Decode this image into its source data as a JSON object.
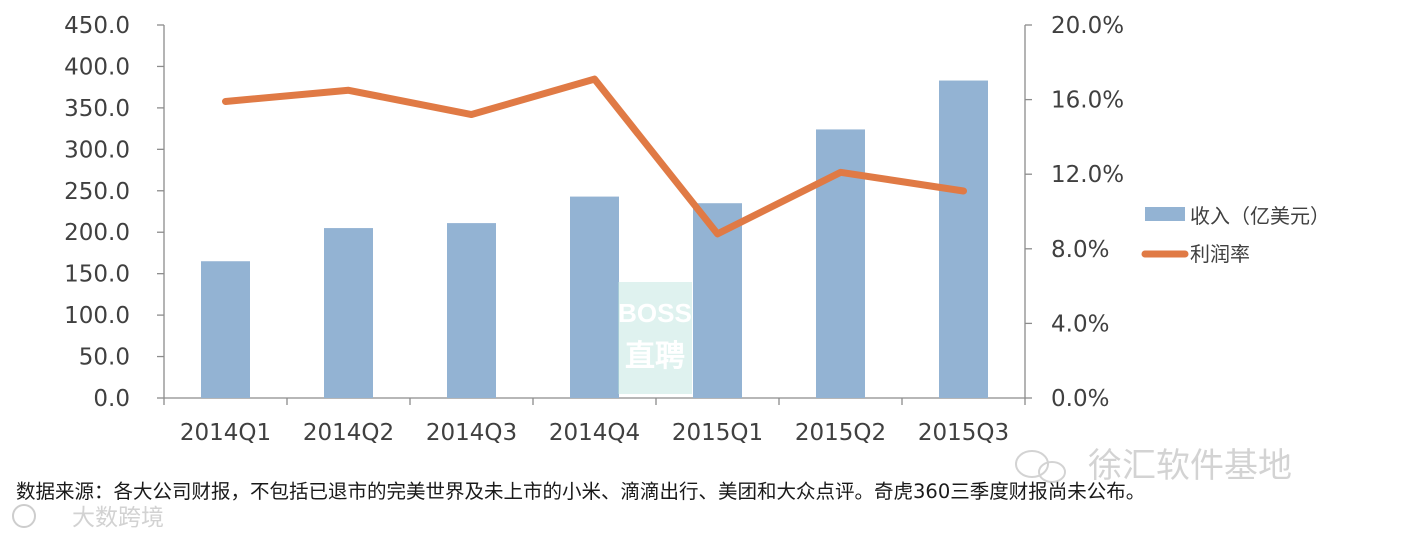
{
  "chart_data": {
    "type": "bar",
    "categories": [
      "2014Q1",
      "2014Q2",
      "2014Q3",
      "2014Q4",
      "2015Q1",
      "2015Q2",
      "2015Q3"
    ],
    "series": [
      {
        "name": "收入（亿美元）",
        "type": "bar",
        "axis": "left",
        "color": "#93b3d3",
        "values": [
          165,
          205,
          211,
          243,
          235,
          324,
          383
        ]
      },
      {
        "name": "利润率",
        "type": "line",
        "axis": "right",
        "color": "#e07a45",
        "values": [
          15.9,
          16.5,
          15.2,
          17.1,
          8.8,
          12.1,
          11.1
        ]
      }
    ],
    "y_left": {
      "ylim": [
        0,
        450
      ],
      "ticks": [
        "0.0",
        "50.0",
        "100.0",
        "150.0",
        "200.0",
        "250.0",
        "300.0",
        "350.0",
        "400.0",
        "450.0"
      ]
    },
    "y_right": {
      "ylim": [
        0,
        20
      ],
      "ticks": [
        "0.0%",
        "4.0%",
        "8.0%",
        "12.0%",
        "16.0%",
        "20.0%"
      ]
    },
    "title": "",
    "xlabel": "",
    "ylabel": "",
    "grid": false,
    "legend": "right"
  },
  "note": "数据来源：各大公司财报，不包括已退市的完美世界及未上市的小米、滴滴出行、美团和大众点评。奇虎360三季度财报尚未公布。",
  "watermarks": {
    "center": [
      "BOSS",
      "直聘"
    ],
    "right": "徐汇软件基地",
    "left": "大数跨境"
  },
  "colors": {
    "bar": "#93b3d3",
    "line": "#e07a45",
    "axis": "#8c8c8c",
    "watermark_center": "#b9e4dc"
  }
}
